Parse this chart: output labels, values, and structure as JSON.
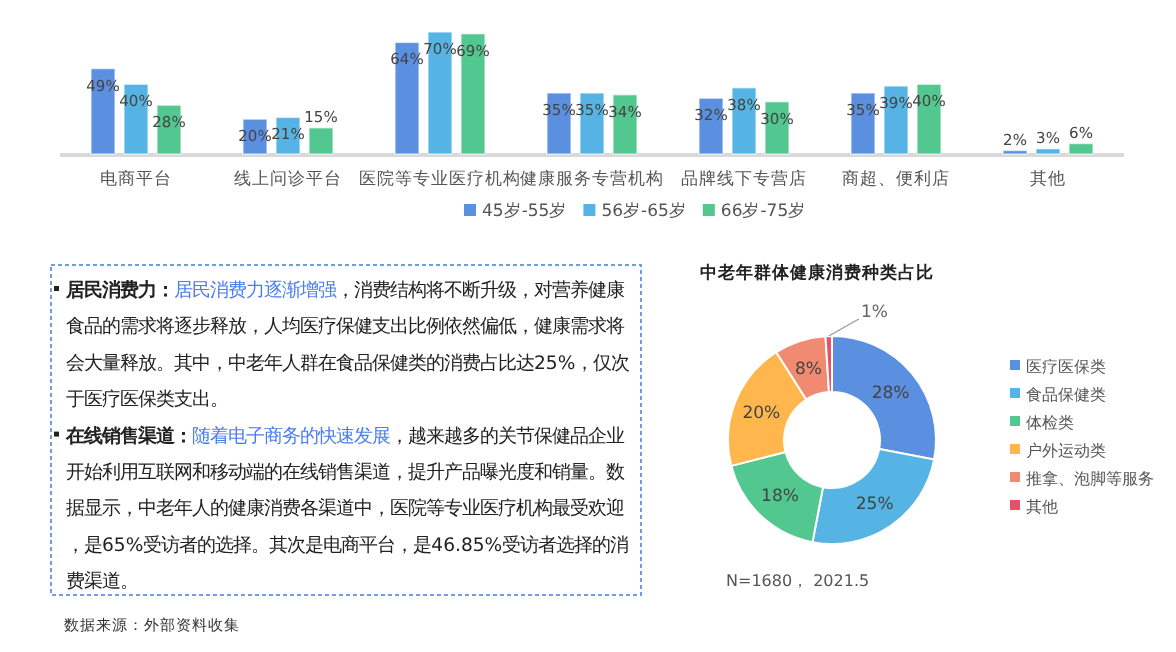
{
  "chart_data": [
    {
      "type": "bar",
      "categories": [
        "电商平台",
        "线上问诊平台",
        "医院等专业医疗机构",
        "健康服务专营机构",
        "品牌线下专营店",
        "商超、便利店",
        "其他"
      ],
      "series": [
        {
          "name": "45岁-55岁",
          "color": "#5b8fe0",
          "values": [
            49,
            20,
            64,
            35,
            32,
            35,
            2
          ],
          "value_labels": [
            "49%",
            "20%",
            "64%",
            "35%",
            "32%",
            "35%",
            "2%"
          ]
        },
        {
          "name": "56岁-65岁",
          "color": "#55b4e3",
          "values": [
            40,
            21,
            70,
            35,
            38,
            39,
            3
          ],
          "value_labels": [
            "40%",
            "21%",
            "70%",
            "35%",
            "38%",
            "39%",
            "3%"
          ]
        },
        {
          "name": "66岁-75岁",
          "color": "#52c78f",
          "values": [
            28,
            15,
            69,
            34,
            30,
            40,
            6
          ],
          "value_labels": [
            "28%",
            "15%",
            "69%",
            "34%",
            "30%",
            "40%",
            "6%"
          ]
        }
      ],
      "legend": "bottom right"
    },
    {
      "type": "other",
      "annotations": [
        "居民消费力：",
        "居民消费力逐渐增强",
        "，消费结构将不断升级，对营养健康食品的需求将逐步释放，人均医疗保健支出比例依然偏低，健康需求将会大量释放。其中，中老年人群在食品保健类的消费占比达25%，仅次于医疗医保类支出。",
        "在线销售渠道：",
        "随着电子商务的快速发展",
        "，越来越多的关节保健品企业开始利用互联网和移动端的在线销售渠道，提升产品曝光度和销量。数据显示，中老年人的健康消费各渠道中，医院等专业医疗机构最受欢迎，是65%受访者的选择。其次是电商平台，是46.85%受访者选择的消费渠道。",
        "数据来源：外部资料收集"
      ]
    },
    {
      "type": "donut",
      "title": "中老年群体健康消费种类占比",
      "categories": [
        "医疗医保类",
        "食品保健类",
        "体检类",
        "户外运动类",
        "推拿、泡脚等服务",
        "其他"
      ],
      "values": [
        28,
        25,
        18,
        20,
        8,
        1
      ],
      "colors": [
        "#5b8fe0",
        "#55b4e3",
        "#52c78f",
        "#ffb74d",
        "#f08a70",
        "#e8506a"
      ],
      "value_labels": [
        "28%",
        "25%",
        "18%",
        "20%",
        "8%",
        "1%"
      ],
      "legend": "right",
      "annotations": [
        "N=1680， 2021.5"
      ]
    }
  ]
}
